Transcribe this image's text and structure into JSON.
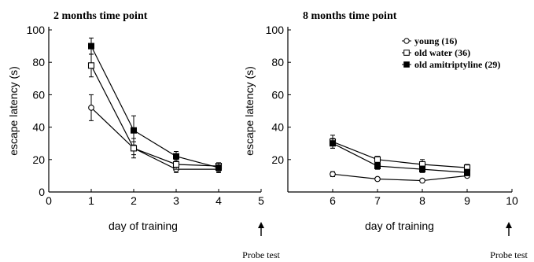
{
  "chart_data": [
    {
      "type": "line",
      "title": "2 months time point",
      "xlabel": "day of training",
      "ylabel": "escape latency (s)",
      "xlim": [
        0,
        5
      ],
      "ylim": [
        0,
        100
      ],
      "xticks": [
        "0",
        "1",
        "2",
        "3",
        "4",
        "5"
      ],
      "yticks": [
        "0",
        "20",
        "40",
        "60",
        "80",
        "100"
      ],
      "annotation": "Probe test",
      "annotation_x": 5,
      "series": [
        {
          "name": "young (16)",
          "marker": "open-circle",
          "points": [
            {
              "x": 1,
              "y": 52,
              "err": 8
            },
            {
              "x": 2,
              "y": 27,
              "err": 6
            },
            {
              "x": 3,
              "y": 14,
              "err": 2
            },
            {
              "x": 4,
              "y": 14,
              "err": 2
            }
          ]
        },
        {
          "name": "old water (36)",
          "marker": "open-square",
          "points": [
            {
              "x": 1,
              "y": 78,
              "err": 7
            },
            {
              "x": 2,
              "y": 27,
              "err": 4
            },
            {
              "x": 3,
              "y": 17,
              "err": 3
            },
            {
              "x": 4,
              "y": 16,
              "err": 2
            }
          ]
        },
        {
          "name": "old amitriptyline (29)",
          "marker": "filled-square",
          "points": [
            {
              "x": 1,
              "y": 90,
              "err": 5
            },
            {
              "x": 2,
              "y": 38,
              "err": 9
            },
            {
              "x": 3,
              "y": 22,
              "err": 3
            },
            {
              "x": 4,
              "y": 15,
              "err": 3
            }
          ]
        }
      ]
    },
    {
      "type": "line",
      "title": "8 months time point",
      "xlabel": "day of training",
      "ylabel": "escape latency (s)",
      "xlim": [
        5,
        10
      ],
      "ylim": [
        0,
        100
      ],
      "xticks": [
        "6",
        "7",
        "8",
        "9",
        "10"
      ],
      "yticks": [
        "20",
        "40",
        "60",
        "80",
        "100"
      ],
      "legend": "top-right",
      "annotation": "Probe test",
      "annotation_x": 10,
      "series": [
        {
          "name": "young (16)",
          "marker": "open-circle",
          "points": [
            {
              "x": 6,
              "y": 11,
              "err": 1.5
            },
            {
              "x": 7,
              "y": 8,
              "err": 1
            },
            {
              "x": 8,
              "y": 7,
              "err": 1
            },
            {
              "x": 9,
              "y": 10,
              "err": 1
            }
          ]
        },
        {
          "name": "old water (36)",
          "marker": "open-square",
          "points": [
            {
              "x": 6,
              "y": 31,
              "err": 4
            },
            {
              "x": 7,
              "y": 20,
              "err": 2
            },
            {
              "x": 8,
              "y": 17,
              "err": 3
            },
            {
              "x": 9,
              "y": 15,
              "err": 2
            }
          ]
        },
        {
          "name": "old amitriptyline (29)",
          "marker": "filled-square",
          "points": [
            {
              "x": 6,
              "y": 30,
              "err": 3
            },
            {
              "x": 7,
              "y": 16,
              "err": 2
            },
            {
              "x": 8,
              "y": 14,
              "err": 2
            },
            {
              "x": 9,
              "y": 12,
              "err": 2
            }
          ]
        }
      ]
    }
  ]
}
